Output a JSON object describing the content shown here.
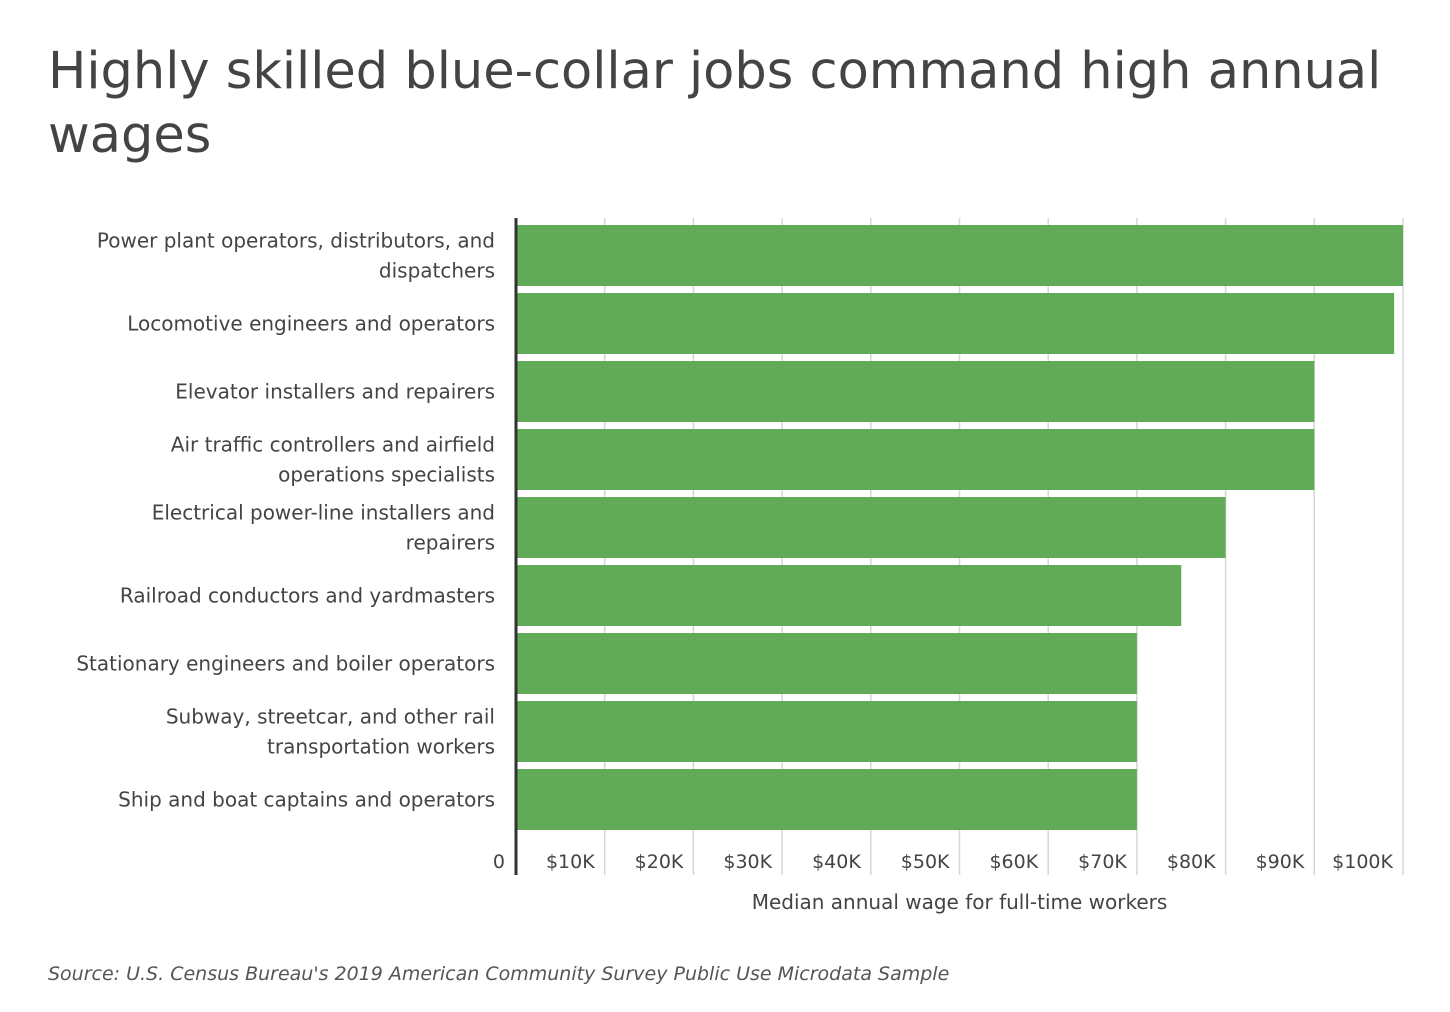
{
  "chart_data": {
    "type": "bar",
    "orientation": "horizontal",
    "title": "Highly skilled blue-collar jobs command high annual wages",
    "xlabel": "Median annual wage for full-time workers",
    "ylabel": "",
    "categories": [
      "Power plant operators, distributors, and dispatchers",
      "Locomotive engineers and operators",
      "Elevator installers and repairers",
      "Air traffic controllers and airfield operations specialists",
      "Electrical power-line installers and repairers",
      "Railroad conductors and yardmasters",
      "Stationary engineers and boiler operators",
      "Subway, streetcar, and other rail transportation workers",
      "Ship and boat captains and operators"
    ],
    "values": [
      100000,
      99000,
      90000,
      90000,
      80000,
      75000,
      70000,
      70000,
      70000
    ],
    "xlim": [
      0,
      100000
    ],
    "ticks": [
      0,
      10000,
      20000,
      30000,
      40000,
      50000,
      60000,
      70000,
      80000,
      90000,
      100000
    ],
    "tick_labels": [
      "0",
      "$10K",
      "$20K",
      "$30K",
      "$40K",
      "$50K",
      "$60K",
      "$70K",
      "$80K",
      "$90K",
      "$100K"
    ],
    "grid": true,
    "bar_color": "#61ab58",
    "source": "Source:  U.S. Census Bureau's 2019 American Community Survey Public Use Microdata Sample"
  }
}
